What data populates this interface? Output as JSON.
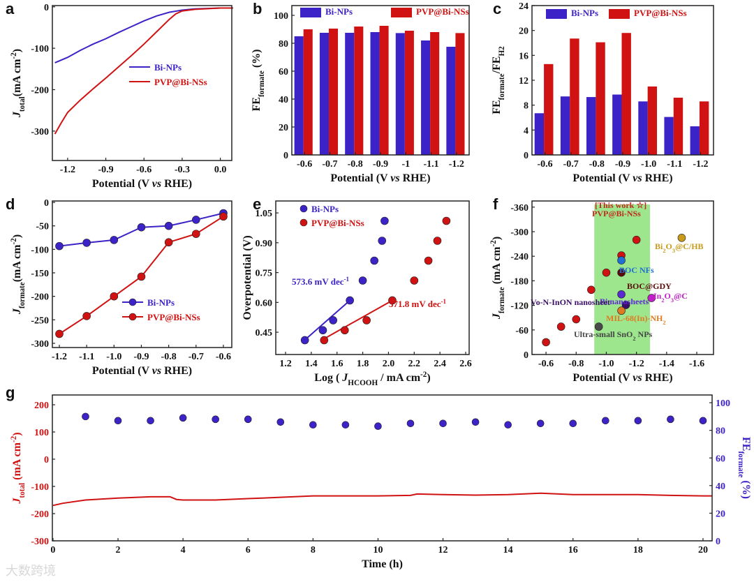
{
  "watermark": "大数跨境",
  "colors": {
    "blue": "#3b23c8",
    "red": "#d01212",
    "band": "#9ee68e"
  },
  "chart_data": [
    {
      "id": "a",
      "type": "line",
      "panel_label": "a",
      "xlabel": "Potential (V *vs* RHE)",
      "ylabel": "*J*_{total}(mA cm^{-2})",
      "xlim": [
        -1.32,
        0.09
      ],
      "ylim": [
        -371,
        3
      ],
      "xticks": [
        -1.2,
        -0.9,
        -0.6,
        -0.3,
        0.0
      ],
      "xtick_labels": [
        "-1.2",
        "-0.9",
        "-0.6",
        "-0.3",
        "0.0"
      ],
      "yticks": [
        0,
        -100,
        -200,
        -300
      ],
      "ytick_labels": [
        "0",
        "-100",
        "-200",
        "-300"
      ],
      "series": [
        {
          "name": "Bi-NPs",
          "color": "#3b23c8",
          "x": [
            -1.3,
            -1.2,
            -1.1,
            -1.0,
            -0.9,
            -0.8,
            -0.7,
            -0.6,
            -0.5,
            -0.4,
            -0.3,
            -0.2,
            0.0,
            0.1
          ],
          "y": [
            -135,
            -122,
            -105,
            -90,
            -77,
            -62,
            -48,
            -34,
            -22,
            -13,
            -8,
            -5,
            -3,
            -3
          ]
        },
        {
          "name": "PVP@Bi-NSs",
          "color": "#d01212",
          "x": [
            -1.3,
            -1.25,
            -1.2,
            -1.1,
            -1.0,
            -0.9,
            -0.8,
            -0.7,
            -0.6,
            -0.5,
            -0.4,
            -0.35,
            -0.3,
            -0.2,
            0.0,
            0.1
          ],
          "y": [
            -307,
            -280,
            -255,
            -225,
            -198,
            -172,
            -145,
            -118,
            -90,
            -60,
            -30,
            -17,
            -10,
            -6,
            -3,
            -3
          ]
        }
      ]
    },
    {
      "id": "b",
      "type": "bar",
      "panel_label": "b",
      "xlabel": "Potential (V *vs* RHE)",
      "ylabel": "FE_{formate} (%)",
      "categories": [
        "-0.6",
        "-0.7",
        "-0.8",
        "-0.9",
        "-1",
        "-1.1",
        "-1.2"
      ],
      "ylim": [
        0,
        107
      ],
      "yticks": [
        0,
        20,
        40,
        60,
        80,
        100
      ],
      "ytick_labels": [
        "0",
        "20",
        "40",
        "60",
        "80",
        "100"
      ],
      "series": [
        {
          "name": "Bi-NPs",
          "color": "#3b23c8",
          "values": [
            85,
            87.5,
            87.5,
            88,
            87.3,
            82,
            77.5
          ]
        },
        {
          "name": "PVP@Bi-NSs",
          "color": "#d01212",
          "values": [
            90,
            90.5,
            92,
            92.5,
            89,
            88,
            87.3
          ]
        }
      ]
    },
    {
      "id": "c",
      "type": "bar",
      "panel_label": "c",
      "xlabel": "Potential (V *vs* RHE)",
      "ylabel": "FE_{formate}/FE_{H2}",
      "categories": [
        "-0.6",
        "-0.7",
        "-0.8",
        "-0.9",
        "-1.0",
        "-1.1",
        "-1.2"
      ],
      "ylim": [
        0,
        24
      ],
      "yticks": [
        0,
        4,
        8,
        12,
        16,
        20,
        24
      ],
      "ytick_labels": [
        "0",
        "4",
        "8",
        "12",
        "16",
        "20",
        "24"
      ],
      "series": [
        {
          "name": "Bi-NPs",
          "color": "#3b23c8",
          "values": [
            6.7,
            9.4,
            9.3,
            9.7,
            8.6,
            6.1,
            4.6
          ]
        },
        {
          "name": "PVP@Bi-NSs",
          "color": "#d01212",
          "values": [
            14.6,
            18.7,
            18.1,
            19.6,
            11.0,
            9.2,
            8.6
          ]
        }
      ]
    },
    {
      "id": "d",
      "type": "line",
      "panel_label": "d",
      "markers": true,
      "xlabel": "Potential (V *vs* RHE)",
      "ylabel": "*J*_{formate}(mA cm^{-2})",
      "xlim": [
        -1.2255,
        -0.5693
      ],
      "ylim": [
        -309,
        3
      ],
      "xticks": [
        -1.2,
        -1.1,
        -1.0,
        -0.9,
        -0.8,
        -0.7,
        -0.6
      ],
      "xtick_labels": [
        "-1.2",
        "-1.1",
        "-1.0",
        "-0.9",
        "-0.8",
        "-0.7",
        "-0.6"
      ],
      "yticks": [
        0,
        -50,
        -100,
        -150,
        -200,
        -250,
        -300
      ],
      "ytick_labels": [
        "0",
        "-50",
        "-100",
        "-150",
        "-200",
        "-250",
        "-300"
      ],
      "series": [
        {
          "name": "Bi-NPs",
          "color": "#3b23c8",
          "x": [
            -1.2,
            -1.1,
            -1.0,
            -0.9,
            -0.8,
            -0.7,
            -0.6
          ],
          "y": [
            -93,
            -86,
            -80,
            -53,
            -50,
            -37,
            -23
          ]
        },
        {
          "name": "PVP@Bi-NSs",
          "color": "#d01212",
          "x": [
            -1.2,
            -1.1,
            -1.0,
            -0.9,
            -0.8,
            -0.7,
            -0.6
          ],
          "y": [
            -280,
            -242,
            -200,
            -158,
            -85,
            -67,
            -30
          ]
        }
      ]
    },
    {
      "id": "e",
      "type": "scatter",
      "panel_label": "e",
      "xlabel": "Log ( *J*_{HCOOH} / mA cm^{-2})",
      "ylabel": "Overpotential (V)",
      "xlim": [
        1.124,
        2.627
      ],
      "ylim": [
        0.338,
        1.11
      ],
      "xticks": [
        1.2,
        1.4,
        1.6,
        1.8,
        2.0,
        2.2,
        2.4,
        2.6
      ],
      "xtick_labels": [
        "1.2",
        "1.4",
        "1.6",
        "1.8",
        "2.0",
        "2.2",
        "2.4",
        "2.6"
      ],
      "yticks": [
        0.45,
        0.6,
        0.75,
        0.9,
        1.05
      ],
      "ytick_labels": [
        "0.45",
        "0.60",
        "0.75",
        "0.90",
        "1.05"
      ],
      "series": [
        {
          "name": "Bi-NPs",
          "color": "#3b23c8",
          "x": [
            1.35,
            1.49,
            1.57,
            1.7,
            1.8,
            1.89,
            1.95,
            1.97
          ],
          "y": [
            0.41,
            0.46,
            0.51,
            0.61,
            0.71,
            0.81,
            0.91,
            1.01
          ],
          "fit": [
            [
              1.33,
              0.4
            ],
            [
              1.7,
              0.61
            ]
          ],
          "annotation": "573.6 mV dec^{-1}"
        },
        {
          "name": "PVP@Bi-NSs",
          "color": "#d01212",
          "x": [
            1.5,
            1.66,
            1.83,
            2.03,
            2.2,
            2.31,
            2.38,
            2.45
          ],
          "y": [
            0.41,
            0.46,
            0.51,
            0.61,
            0.71,
            0.81,
            0.91,
            1.01
          ],
          "fit": [
            [
              1.48,
              0.41
            ],
            [
              2.03,
              0.61
            ]
          ],
          "annotation": "371.8 mV dec^{-1}"
        }
      ]
    },
    {
      "id": "f",
      "type": "scatter",
      "panel_label": "f",
      "xlabel": "Potential (V *vs* RHE)",
      "ylabel": "*J*_{formate} (mA cm^{-2})",
      "xlim": [
        -0.507,
        -1.711
      ],
      "ylim": [
        0,
        -375
      ],
      "xticks": [
        -0.6,
        -0.8,
        -1.0,
        -1.2,
        -1.4,
        -1.6
      ],
      "xtick_labels": [
        "-0.6",
        "-0.8",
        "-1.0",
        "-1.2",
        "-1.4",
        "-1.6"
      ],
      "yticks": [
        0,
        -60,
        -120,
        -180,
        -240,
        -300,
        -360
      ],
      "ytick_labels": [
        "0",
        "-60",
        "-120",
        "-180",
        "-240",
        "-300",
        "-360"
      ],
      "highlight_band": [
        -0.92,
        -1.29
      ],
      "this_work_label": "[This work ☆]",
      "series": [
        {
          "name": "PVP@Bi-NSs",
          "color": "#d01212",
          "x": [
            -0.6,
            -0.7,
            -0.8,
            -0.9,
            -1.0,
            -1.1,
            -1.2
          ],
          "y": [
            -30,
            -68,
            -86,
            -158,
            -200,
            -242,
            -280
          ]
        },
        {
          "name": "BOC NFs",
          "color": "#1f6fd6",
          "x": [
            -1.1
          ],
          "y": [
            -230
          ]
        },
        {
          "name": "BOC@GDY",
          "color": "#5a0a0a",
          "x": [
            -1.1
          ],
          "y": [
            -200
          ]
        },
        {
          "name": "Bi nanosheets",
          "color": "#5a2ad0",
          "x": [
            -1.1
          ],
          "y": [
            -147
          ]
        },
        {
          "name": "Vo-N-InON nanosheet",
          "color": "#3a0f6a",
          "x": [
            -1.13
          ],
          "y": [
            -121
          ]
        },
        {
          "name": "MIL-68(In)-NH_{2}",
          "color": "#e07a20",
          "x": [
            -1.1
          ],
          "y": [
            -107
          ]
        },
        {
          "name": "Ultra-small SnO_{2} NPs",
          "color": "#4a4a4a",
          "x": [
            -0.95
          ],
          "y": [
            -68
          ]
        },
        {
          "name": "In_{2}O_{3}@C",
          "color": "#c020c8",
          "x": [
            -1.3
          ],
          "y": [
            -138
          ]
        },
        {
          "name": "Bi_{2}O_{3}@C/HB",
          "color": "#c89a1a",
          "x": [
            -1.5
          ],
          "y": [
            -285
          ]
        }
      ]
    },
    {
      "id": "g",
      "type": "line",
      "panel_label": "g",
      "xlabel": "Time (h)",
      "ylabel": "*J*_{total} (mA cm^{-2})",
      "y2label": "FE_{formate} (%)",
      "xlim": [
        -0.02,
        20.28
      ],
      "ylim": [
        -300,
        236
      ],
      "y2lim": [
        0,
        105.6
      ],
      "xticks": [
        0,
        2,
        4,
        6,
        8,
        10,
        12,
        14,
        16,
        18,
        20
      ],
      "xtick_labels": [
        "0",
        "2",
        "4",
        "6",
        "8",
        "10",
        "12",
        "14",
        "16",
        "18",
        "20"
      ],
      "yticks": [
        -300,
        -200,
        -100,
        0,
        100,
        200
      ],
      "ytick_labels": [
        "-300",
        "-200",
        "-100",
        "0",
        "100",
        "200"
      ],
      "y2ticks": [
        0,
        20,
        40,
        60,
        80,
        100
      ],
      "y2tick_labels": [
        "0",
        "20",
        "40",
        "60",
        "80",
        "100"
      ],
      "series": [
        {
          "name": "Jtotal",
          "color": "#d01212",
          "axis": "left",
          "x": [
            0,
            0.3,
            1,
            2,
            3,
            3.6,
            3.8,
            4,
            5,
            6,
            7,
            8,
            9,
            10,
            11,
            11.2,
            12,
            13,
            14,
            15,
            16,
            17,
            18,
            19,
            20,
            20.28
          ],
          "y": [
            -170,
            -162,
            -150,
            -143,
            -138,
            -138,
            -148,
            -150,
            -150,
            -145,
            -140,
            -135,
            -135,
            -135,
            -133,
            -128,
            -130,
            -132,
            -130,
            -125,
            -130,
            -130,
            -130,
            -133,
            -135,
            -135
          ]
        },
        {
          "name": "FEformate",
          "color": "#3b23c8",
          "axis": "right",
          "markers_only": true,
          "x": [
            1,
            2,
            3,
            4,
            5,
            6,
            7,
            8,
            9,
            10,
            11,
            12,
            13,
            14,
            15,
            16,
            17,
            18,
            19,
            20
          ],
          "y": [
            90,
            87,
            87,
            89,
            88,
            88,
            86,
            84,
            84,
            83,
            85,
            85,
            86,
            84,
            85,
            85,
            87,
            87,
            88,
            87
          ]
        }
      ]
    }
  ]
}
